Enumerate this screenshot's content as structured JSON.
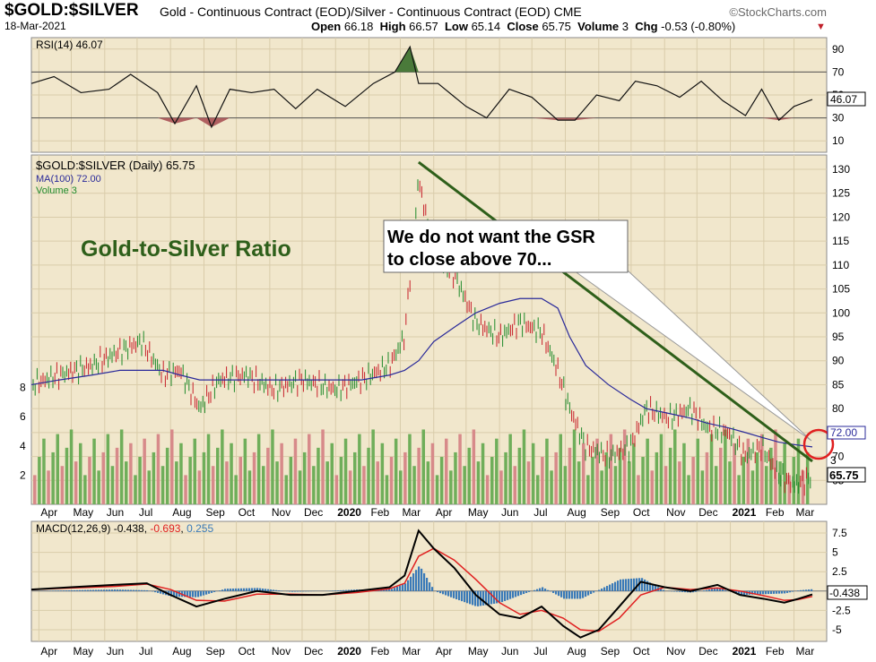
{
  "header": {
    "symbol": "$GOLD:$SILVER",
    "description": "Gold - Continuous Contract (EOD)/Silver - Continuous Contract (EOD)",
    "exchange": "CME",
    "watermark": "StockCharts.com",
    "date": "18-Mar-2021",
    "open_label": "Open",
    "open": "66.18",
    "high_label": "High",
    "high": "66.57",
    "low_label": "Low",
    "low": "65.14",
    "close_label": "Close",
    "close": "65.75",
    "volume_label": "Volume",
    "volume": "3",
    "chg_label": "Chg",
    "chg": "-0.53 (-0.80%)",
    "chg_arrow": "▼"
  },
  "colors": {
    "panel_bg": "#f1e7cc",
    "grid": "#d9ccaa",
    "up": "#1f8a2a",
    "down": "#c7202a",
    "ma": "#2a2a9a",
    "trendline": "#2e5f1a",
    "vol_up": "#6fae5a",
    "vol_down": "#d78a8a",
    "macd": "#000000",
    "signal": "#e02020",
    "hist": "#3a7ab8",
    "circle": "#e02020"
  },
  "annotations": {
    "panel_title": "Gold-to-Silver Ratio",
    "callout_line1": "We do not want the GSR",
    "callout_line2": "to close above 70..."
  },
  "chart_data": [
    {
      "type": "line",
      "name": "RSI(14)",
      "legend": "RSI(14) 46.07",
      "current_label": "46.07",
      "ylim": [
        0,
        100
      ],
      "yticks": [
        10,
        30,
        50,
        70,
        90
      ],
      "overbought": 70,
      "oversold": 30,
      "x": [
        "2019-03-25",
        "2019-04-15",
        "2019-05-10",
        "2019-06-05",
        "2019-06-25",
        "2019-07-20",
        "2019-08-05",
        "2019-08-25",
        "2019-09-08",
        "2019-09-25",
        "2019-10-15",
        "2019-11-05",
        "2019-11-25",
        "2019-12-15",
        "2020-01-10",
        "2020-02-05",
        "2020-02-25",
        "2020-03-10",
        "2020-03-18",
        "2020-04-05",
        "2020-05-01",
        "2020-05-20",
        "2020-06-10",
        "2020-07-01",
        "2020-07-25",
        "2020-08-10",
        "2020-08-30",
        "2020-09-20",
        "2020-10-05",
        "2020-10-25",
        "2020-11-15",
        "2020-12-05",
        "2020-12-25",
        "2021-01-15",
        "2021-01-30",
        "2021-02-15",
        "2021-03-01",
        "2021-03-18"
      ],
      "values": [
        60,
        66,
        52,
        55,
        68,
        52,
        25,
        58,
        22,
        55,
        52,
        55,
        38,
        55,
        40,
        60,
        70,
        92,
        60,
        60,
        40,
        30,
        55,
        48,
        28,
        28,
        50,
        45,
        62,
        58,
        48,
        62,
        45,
        32,
        55,
        28,
        40,
        46.07
      ]
    },
    {
      "type": "line",
      "name": "$GOLD:$SILVER (Daily)",
      "legend": "$GOLD:$SILVER (Daily) 65.75",
      "ma_legend": "MA(100) 72.00",
      "volume_legend": "Volume 3",
      "ma_label": "72.00",
      "close_label": "65.75",
      "volume_label": "3",
      "ylim": [
        60,
        133
      ],
      "yticks": [
        65,
        70,
        75,
        80,
        85,
        90,
        95,
        100,
        105,
        110,
        115,
        120,
        125,
        130
      ],
      "volume_ylim": [
        0,
        10
      ],
      "volume_ticks": [
        2,
        4,
        6,
        8
      ],
      "x": [
        "2019-03-25",
        "2019-04-20",
        "2019-05-20",
        "2019-06-15",
        "2019-07-05",
        "2019-07-25",
        "2019-08-10",
        "2019-08-28",
        "2019-09-15",
        "2019-10-10",
        "2019-11-05",
        "2019-12-01",
        "2020-01-01",
        "2020-01-25",
        "2020-02-20",
        "2020-03-05",
        "2020-03-18",
        "2020-04-01",
        "2020-04-20",
        "2020-05-10",
        "2020-06-01",
        "2020-06-20",
        "2020-07-10",
        "2020-07-25",
        "2020-08-05",
        "2020-08-20",
        "2020-09-10",
        "2020-09-30",
        "2020-10-15",
        "2020-11-05",
        "2020-11-25",
        "2020-12-10",
        "2020-12-30",
        "2021-01-15",
        "2021-01-30",
        "2021-02-15",
        "2021-03-01",
        "2021-03-18"
      ],
      "values": [
        85,
        87,
        89,
        92,
        94,
        87,
        88,
        80,
        86,
        87,
        84,
        86,
        84,
        86,
        89,
        95,
        128,
        112,
        108,
        98,
        95,
        98,
        96,
        88,
        80,
        72,
        70,
        72,
        80,
        78,
        80,
        76,
        75,
        70,
        72,
        66,
        64,
        65.75
      ],
      "ma100": [
        85,
        86,
        87,
        88,
        88,
        88,
        87,
        86,
        86,
        86,
        86,
        86,
        86,
        86,
        87,
        88,
        90,
        94,
        97,
        100,
        102,
        103,
        103,
        101,
        95,
        89,
        85,
        82,
        80,
        79,
        78,
        77,
        76,
        75,
        74,
        73,
        72.5,
        72.0
      ],
      "trendline": {
        "from": [
          "2020-03-18",
          131.5
        ],
        "to": [
          "2021-03-18",
          69
        ]
      }
    },
    {
      "type": "line",
      "name": "MACD(12,26,9)",
      "legend_macd": "MACD(12,26,9) -0.438",
      "legend_signal": "-0.693",
      "legend_hist": "0.255",
      "current_label": "-0.438",
      "ylim": [
        -6.5,
        9
      ],
      "yticks": [
        -5.0,
        -2.5,
        2.5,
        5.0,
        7.5
      ],
      "x": [
        "2019-03-25",
        "2019-05-01",
        "2019-06-10",
        "2019-07-10",
        "2019-08-01",
        "2019-08-25",
        "2019-09-20",
        "2019-10-20",
        "2019-11-20",
        "2019-12-20",
        "2020-01-20",
        "2020-02-20",
        "2020-03-05",
        "2020-03-18",
        "2020-04-01",
        "2020-04-20",
        "2020-05-10",
        "2020-06-01",
        "2020-06-20",
        "2020-07-10",
        "2020-07-30",
        "2020-08-15",
        "2020-09-01",
        "2020-09-20",
        "2020-10-10",
        "2020-11-01",
        "2020-11-25",
        "2020-12-20",
        "2021-01-10",
        "2021-02-01",
        "2021-02-20",
        "2021-03-05",
        "2021-03-18"
      ],
      "macd": [
        0.2,
        0.5,
        0.8,
        1.0,
        -0.5,
        -2.0,
        -1.0,
        0.0,
        -0.5,
        -0.5,
        0.0,
        0.5,
        2.0,
        7.8,
        5.5,
        3.0,
        -0.5,
        -3.0,
        -3.5,
        -2.0,
        -4.5,
        -6.0,
        -5.0,
        -2.0,
        1.2,
        0.5,
        0.0,
        0.8,
        -0.5,
        -1.0,
        -1.5,
        -1.0,
        -0.438
      ],
      "signal": [
        0.2,
        0.4,
        0.6,
        0.9,
        0.2,
        -1.2,
        -1.3,
        -0.4,
        -0.4,
        -0.5,
        -0.2,
        0.3,
        1.0,
        4.5,
        5.5,
        4.0,
        1.5,
        -1.5,
        -3.0,
        -2.5,
        -3.5,
        -5.0,
        -5.2,
        -3.5,
        -0.5,
        0.5,
        0.2,
        0.4,
        0.0,
        -0.6,
        -1.2,
        -1.1,
        -0.693
      ]
    }
  ],
  "x_axis": {
    "labels": [
      "Apr",
      "May",
      "Jun",
      "Jul",
      "Aug",
      "Sep",
      "Oct",
      "Nov",
      "Dec",
      "2020",
      "Feb",
      "Mar",
      "Apr",
      "May",
      "Jun",
      "Jul",
      "Aug",
      "Sep",
      "Oct",
      "Nov",
      "Dec",
      "2021",
      "Feb",
      "Mar"
    ],
    "dates": [
      "2019-04-01",
      "2019-05-01",
      "2019-06-01",
      "2019-07-01",
      "2019-08-01",
      "2019-09-01",
      "2019-10-01",
      "2019-11-01",
      "2019-12-01",
      "2020-01-01",
      "2020-02-01",
      "2020-03-01",
      "2020-04-01",
      "2020-05-01",
      "2020-06-01",
      "2020-07-01",
      "2020-08-01",
      "2020-09-01",
      "2020-10-01",
      "2020-11-01",
      "2020-12-01",
      "2021-01-01",
      "2021-02-01",
      "2021-03-01"
    ]
  }
}
